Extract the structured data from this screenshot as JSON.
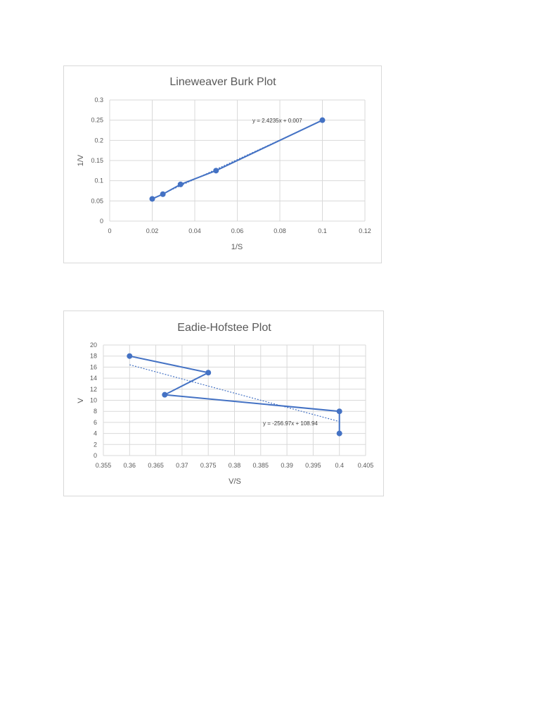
{
  "chart_data": [
    {
      "type": "scatter",
      "title": "Lineweaver Burk Plot",
      "xlabel": "1/S",
      "ylabel": "1/V",
      "xlim": [
        0,
        0.12
      ],
      "ylim": [
        0,
        0.3
      ],
      "x_ticks": [
        "0",
        "0.02",
        "0.04",
        "0.06",
        "0.08",
        "0.1",
        "0.12"
      ],
      "y_ticks": [
        "0",
        "0.05",
        "0.1",
        "0.15",
        "0.2",
        "0.25",
        "0.3"
      ],
      "grid": true,
      "legend": "none",
      "series": [
        {
          "x": [
            0.02,
            0.025,
            0.0333,
            0.05,
            0.1
          ],
          "y": [
            0.055,
            0.0667,
            0.0909,
            0.125,
            0.25
          ],
          "line": "solid",
          "markers": true
        }
      ],
      "trendline": {
        "type": "linear",
        "equation": "y = 2.4235x + 0.007",
        "slope": 2.4235,
        "intercept": 0.007
      },
      "color": "#4472c4"
    },
    {
      "type": "scatter",
      "title": "Eadie-Hofstee Plot",
      "xlabel": "V/S",
      "ylabel": "V",
      "xlim": [
        0.355,
        0.405
      ],
      "ylim": [
        0,
        20
      ],
      "x_ticks": [
        "0.355",
        "0.36",
        "0.365",
        "0.37",
        "0.375",
        "0.38",
        "0.385",
        "0.39",
        "0.395",
        "0.4",
        "0.405"
      ],
      "y_ticks": [
        "0",
        "2",
        "4",
        "6",
        "8",
        "10",
        "12",
        "14",
        "16",
        "18",
        "20"
      ],
      "grid": true,
      "legend": "none",
      "series": [
        {
          "x": [
            0.36,
            0.375,
            0.3667,
            0.4,
            0.4
          ],
          "y": [
            18,
            15,
            11,
            8,
            4
          ],
          "line": "solid",
          "markers": true
        }
      ],
      "trendline": {
        "type": "linear",
        "equation": "y = -256.97x + 108.94",
        "slope": -256.97,
        "intercept": 108.94
      },
      "color": "#4472c4"
    }
  ]
}
